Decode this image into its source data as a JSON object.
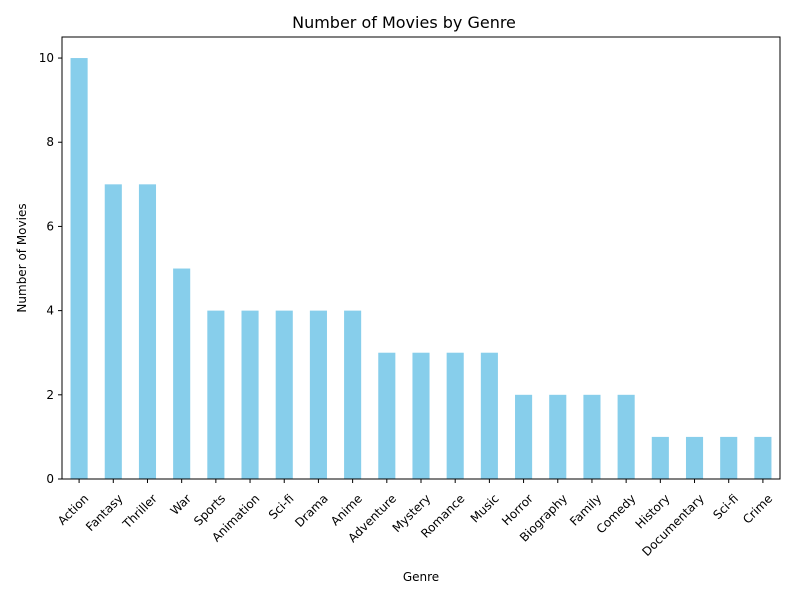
{
  "chart_data": {
    "type": "bar",
    "title": "Number of Movies by Genre",
    "xlabel": "Genre",
    "ylabel": "Number of Movies",
    "categories": [
      "Action",
      "Fantasy",
      "Thriller",
      "War",
      "Sports",
      "Animation",
      "Sci-fi",
      "Drama",
      "Anime",
      "Adventure",
      "Mystery",
      "Romance",
      "Music",
      "Horror",
      "Biography",
      "Family",
      "Comedy",
      "History",
      "Documentary",
      "Sci-fi",
      "Crime"
    ],
    "values": [
      10,
      7,
      7,
      5,
      4,
      4,
      4,
      4,
      4,
      3,
      3,
      3,
      3,
      2,
      2,
      2,
      2,
      1,
      1,
      1,
      1
    ],
    "ylim": [
      0,
      10.5
    ],
    "yticks": [
      0,
      2,
      4,
      6,
      8,
      10
    ],
    "bar_color": "#87ceeb",
    "grid": false,
    "legend": "none"
  }
}
